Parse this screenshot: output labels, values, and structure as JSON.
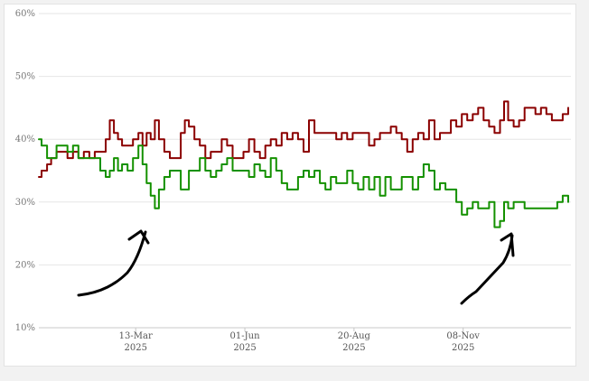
{
  "colors": {
    "series_red": "#8b0000",
    "series_green": "#149100",
    "grid": "#e6e6e6",
    "annotation": "#000000"
  },
  "chart_data": {
    "type": "line",
    "title": "",
    "xlabel": "",
    "ylabel": "",
    "y_ticks": [
      "10%",
      "20%",
      "30%",
      "40%",
      "50%",
      "60%"
    ],
    "ylim": [
      10,
      60
    ],
    "xlim": [
      "2025-01-01",
      "2026-01-26"
    ],
    "x_ticks": [
      {
        "date": "2025-03-13",
        "line1": "13-Mar",
        "line2": "2025"
      },
      {
        "date": "2025-06-01",
        "line1": "01-Jun",
        "line2": "2025"
      },
      {
        "date": "2025-08-20",
        "line1": "20-Aug",
        "line2": "2025"
      },
      {
        "date": "2025-11-08",
        "line1": "08-Nov",
        "line2": "2025"
      }
    ],
    "grid": true,
    "legend": "none",
    "annotations": [
      "hand-drawn arrow pointing to green dip in late March 2025",
      "hand-drawn arrow pointing to green low in late November 2025"
    ],
    "series": [
      {
        "color": "#8b0000",
        "points": [
          [
            "2025-01-01",
            34
          ],
          [
            "2025-01-03",
            35
          ],
          [
            "2025-01-07",
            36
          ],
          [
            "2025-01-10",
            37
          ],
          [
            "2025-01-14",
            38
          ],
          [
            "2025-01-18",
            38
          ],
          [
            "2025-01-22",
            37
          ],
          [
            "2025-01-26",
            38
          ],
          [
            "2025-01-30",
            37
          ],
          [
            "2025-02-03",
            38
          ],
          [
            "2025-02-07",
            37
          ],
          [
            "2025-02-11",
            38
          ],
          [
            "2025-02-15",
            38
          ],
          [
            "2025-02-19",
            40
          ],
          [
            "2025-02-22",
            43
          ],
          [
            "2025-02-25",
            41
          ],
          [
            "2025-02-28",
            40
          ],
          [
            "2025-03-03",
            39
          ],
          [
            "2025-03-07",
            39
          ],
          [
            "2025-03-11",
            40
          ],
          [
            "2025-03-15",
            41
          ],
          [
            "2025-03-18",
            39
          ],
          [
            "2025-03-21",
            41
          ],
          [
            "2025-03-24",
            40
          ],
          [
            "2025-03-27",
            43
          ],
          [
            "2025-03-30",
            40
          ],
          [
            "2025-04-03",
            38
          ],
          [
            "2025-04-07",
            37
          ],
          [
            "2025-04-11",
            37
          ],
          [
            "2025-04-15",
            41
          ],
          [
            "2025-04-18",
            43
          ],
          [
            "2025-04-21",
            42
          ],
          [
            "2025-04-25",
            40
          ],
          [
            "2025-04-29",
            39
          ],
          [
            "2025-05-03",
            37
          ],
          [
            "2025-05-07",
            38
          ],
          [
            "2025-05-11",
            38
          ],
          [
            "2025-05-15",
            40
          ],
          [
            "2025-05-19",
            39
          ],
          [
            "2025-05-23",
            37
          ],
          [
            "2025-05-27",
            37
          ],
          [
            "2025-05-31",
            38
          ],
          [
            "2025-06-04",
            40
          ],
          [
            "2025-06-08",
            38
          ],
          [
            "2025-06-12",
            37
          ],
          [
            "2025-06-16",
            39
          ],
          [
            "2025-06-20",
            40
          ],
          [
            "2025-06-24",
            39
          ],
          [
            "2025-06-28",
            41
          ],
          [
            "2025-07-02",
            40
          ],
          [
            "2025-07-06",
            41
          ],
          [
            "2025-07-10",
            40
          ],
          [
            "2025-07-14",
            38
          ],
          [
            "2025-07-18",
            43
          ],
          [
            "2025-07-22",
            41
          ],
          [
            "2025-07-26",
            41
          ],
          [
            "2025-07-30",
            41
          ],
          [
            "2025-08-03",
            41
          ],
          [
            "2025-08-07",
            40
          ],
          [
            "2025-08-11",
            41
          ],
          [
            "2025-08-15",
            40
          ],
          [
            "2025-08-19",
            41
          ],
          [
            "2025-08-23",
            41
          ],
          [
            "2025-08-27",
            41
          ],
          [
            "2025-08-31",
            39
          ],
          [
            "2025-09-04",
            40
          ],
          [
            "2025-09-08",
            41
          ],
          [
            "2025-09-12",
            41
          ],
          [
            "2025-09-16",
            42
          ],
          [
            "2025-09-20",
            41
          ],
          [
            "2025-09-24",
            40
          ],
          [
            "2025-09-28",
            38
          ],
          [
            "2025-10-02",
            40
          ],
          [
            "2025-10-06",
            41
          ],
          [
            "2025-10-10",
            40
          ],
          [
            "2025-10-14",
            43
          ],
          [
            "2025-10-18",
            40
          ],
          [
            "2025-10-22",
            41
          ],
          [
            "2025-10-26",
            41
          ],
          [
            "2025-10-30",
            43
          ],
          [
            "2025-11-03",
            42
          ],
          [
            "2025-11-07",
            44
          ],
          [
            "2025-11-11",
            43
          ],
          [
            "2025-11-15",
            44
          ],
          [
            "2025-11-19",
            45
          ],
          [
            "2025-11-23",
            43
          ],
          [
            "2025-11-27",
            42
          ],
          [
            "2025-12-01",
            41
          ],
          [
            "2025-12-05",
            43
          ],
          [
            "2025-12-08",
            46
          ],
          [
            "2025-12-11",
            43
          ],
          [
            "2025-12-15",
            42
          ],
          [
            "2025-12-19",
            43
          ],
          [
            "2025-12-23",
            45
          ],
          [
            "2025-12-27",
            45
          ],
          [
            "2025-12-31",
            44
          ],
          [
            "2026-01-04",
            45
          ],
          [
            "2026-01-08",
            44
          ],
          [
            "2026-01-12",
            43
          ],
          [
            "2026-01-16",
            43
          ],
          [
            "2026-01-20",
            44
          ],
          [
            "2026-01-24",
            45
          ]
        ]
      },
      {
        "color": "#149100",
        "points": [
          [
            "2025-01-01",
            40
          ],
          [
            "2025-01-03",
            39
          ],
          [
            "2025-01-07",
            37
          ],
          [
            "2025-01-10",
            37
          ],
          [
            "2025-01-14",
            39
          ],
          [
            "2025-01-18",
            39
          ],
          [
            "2025-01-22",
            38
          ],
          [
            "2025-01-26",
            39
          ],
          [
            "2025-01-30",
            37
          ],
          [
            "2025-02-03",
            37
          ],
          [
            "2025-02-07",
            37
          ],
          [
            "2025-02-11",
            37
          ],
          [
            "2025-02-15",
            35
          ],
          [
            "2025-02-19",
            34
          ],
          [
            "2025-02-22",
            35
          ],
          [
            "2025-02-25",
            37
          ],
          [
            "2025-02-28",
            35
          ],
          [
            "2025-03-03",
            36
          ],
          [
            "2025-03-07",
            35
          ],
          [
            "2025-03-11",
            37
          ],
          [
            "2025-03-15",
            39
          ],
          [
            "2025-03-18",
            36
          ],
          [
            "2025-03-21",
            33
          ],
          [
            "2025-03-24",
            31
          ],
          [
            "2025-03-27",
            29
          ],
          [
            "2025-03-30",
            32
          ],
          [
            "2025-04-03",
            34
          ],
          [
            "2025-04-07",
            35
          ],
          [
            "2025-04-11",
            35
          ],
          [
            "2025-04-15",
            32
          ],
          [
            "2025-04-18",
            32
          ],
          [
            "2025-04-21",
            35
          ],
          [
            "2025-04-25",
            35
          ],
          [
            "2025-04-29",
            37
          ],
          [
            "2025-05-03",
            35
          ],
          [
            "2025-05-07",
            34
          ],
          [
            "2025-05-11",
            35
          ],
          [
            "2025-05-15",
            36
          ],
          [
            "2025-05-19",
            37
          ],
          [
            "2025-05-23",
            35
          ],
          [
            "2025-05-27",
            35
          ],
          [
            "2025-05-31",
            35
          ],
          [
            "2025-06-04",
            34
          ],
          [
            "2025-06-08",
            36
          ],
          [
            "2025-06-12",
            35
          ],
          [
            "2025-06-16",
            34
          ],
          [
            "2025-06-20",
            37
          ],
          [
            "2025-06-24",
            35
          ],
          [
            "2025-06-28",
            33
          ],
          [
            "2025-07-02",
            32
          ],
          [
            "2025-07-06",
            32
          ],
          [
            "2025-07-10",
            34
          ],
          [
            "2025-07-14",
            35
          ],
          [
            "2025-07-18",
            34
          ],
          [
            "2025-07-22",
            35
          ],
          [
            "2025-07-26",
            33
          ],
          [
            "2025-07-30",
            32
          ],
          [
            "2025-08-03",
            34
          ],
          [
            "2025-08-07",
            33
          ],
          [
            "2025-08-11",
            33
          ],
          [
            "2025-08-15",
            35
          ],
          [
            "2025-08-19",
            33
          ],
          [
            "2025-08-23",
            32
          ],
          [
            "2025-08-27",
            34
          ],
          [
            "2025-08-31",
            32
          ],
          [
            "2025-09-04",
            34
          ],
          [
            "2025-09-08",
            31
          ],
          [
            "2025-09-12",
            34
          ],
          [
            "2025-09-16",
            32
          ],
          [
            "2025-09-20",
            32
          ],
          [
            "2025-09-24",
            34
          ],
          [
            "2025-09-28",
            34
          ],
          [
            "2025-10-02",
            32
          ],
          [
            "2025-10-06",
            34
          ],
          [
            "2025-10-10",
            36
          ],
          [
            "2025-10-14",
            35
          ],
          [
            "2025-10-18",
            32
          ],
          [
            "2025-10-22",
            33
          ],
          [
            "2025-10-26",
            32
          ],
          [
            "2025-10-30",
            32
          ],
          [
            "2025-11-03",
            30
          ],
          [
            "2025-11-07",
            28
          ],
          [
            "2025-11-11",
            29
          ],
          [
            "2025-11-15",
            30
          ],
          [
            "2025-11-19",
            29
          ],
          [
            "2025-11-23",
            29
          ],
          [
            "2025-11-27",
            30
          ],
          [
            "2025-12-01",
            26
          ],
          [
            "2025-12-05",
            27
          ],
          [
            "2025-12-08",
            30
          ],
          [
            "2025-12-11",
            29
          ],
          [
            "2025-12-15",
            30
          ],
          [
            "2025-12-19",
            30
          ],
          [
            "2025-12-23",
            29
          ],
          [
            "2025-12-27",
            29
          ],
          [
            "2025-12-31",
            29
          ],
          [
            "2026-01-04",
            29
          ],
          [
            "2026-01-08",
            29
          ],
          [
            "2026-01-12",
            29
          ],
          [
            "2026-01-16",
            30
          ],
          [
            "2026-01-20",
            31
          ],
          [
            "2026-01-24",
            30
          ]
        ]
      }
    ]
  }
}
